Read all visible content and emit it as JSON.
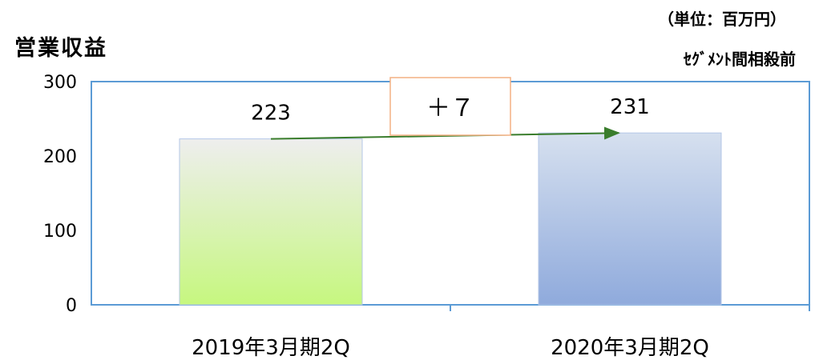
{
  "chart_data": {
    "type": "bar",
    "title": "営業収益",
    "unit_label": "（単位：百万円）",
    "note": "ｾｸﾞﾒﾝﾄ間相殺前",
    "categories": [
      "2019年3月期2Q",
      "2020年3月期2Q"
    ],
    "values": [
      223,
      231
    ],
    "value_labels": [
      "223",
      "231"
    ],
    "yticks": [
      "0",
      "100",
      "200",
      "300"
    ],
    "ylim": [
      0,
      300
    ],
    "annotation": "＋７",
    "colors": {
      "axis": "#5b9bd5",
      "bar1_top": "#eeeeee",
      "bar1_bottom": "#c6f77f",
      "bar2_top": "#d6e0ef",
      "bar2_bottom": "#8faadc",
      "arrow": "#3a7d2c",
      "annotation_border": "#f4b183"
    }
  }
}
